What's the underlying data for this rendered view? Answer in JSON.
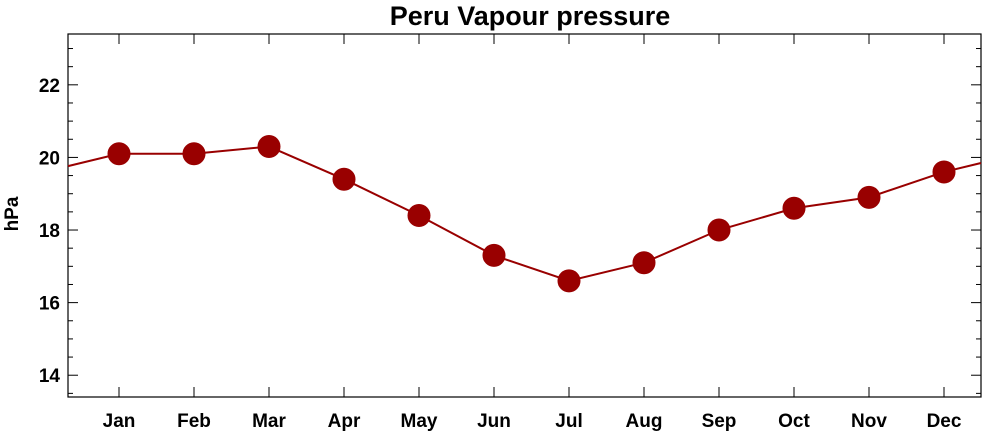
{
  "chart_data": {
    "type": "line",
    "title": "Peru Vapour pressure",
    "xlabel": "",
    "ylabel": "hPa",
    "categories": [
      "Jan",
      "Feb",
      "Mar",
      "Apr",
      "May",
      "Jun",
      "Jul",
      "Aug",
      "Sep",
      "Oct",
      "Nov",
      "Dec"
    ],
    "series": [
      {
        "values": [
          20.1,
          20.1,
          20.3,
          19.4,
          18.4,
          17.3,
          16.6,
          17.1,
          18.0,
          18.6,
          18.9,
          19.6
        ]
      }
    ],
    "ylim": [
      13.4,
      23.4
    ],
    "yticks": [
      14,
      16,
      18,
      20,
      22
    ],
    "wrap_edges": true,
    "grid": false,
    "series_color": "#990000"
  }
}
